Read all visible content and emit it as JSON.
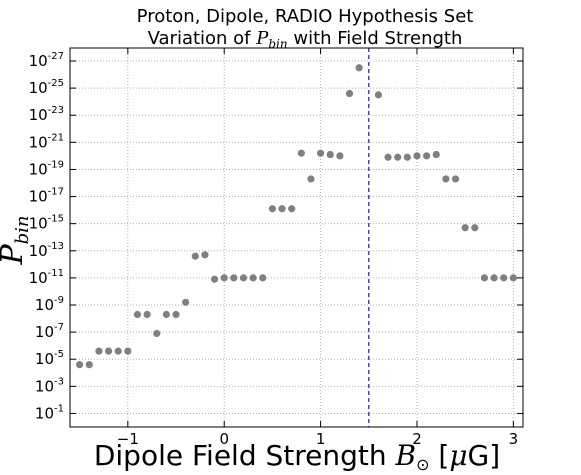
{
  "chart_data": {
    "type": "scatter",
    "title": {
      "line1": "Proton, Dipole, RADIO Hypothesis Set",
      "line2_prefix": "Variation of ",
      "line2_math": "P",
      "line2_math_sub": "bin",
      "line2_suffix": " with Field Strength"
    },
    "xlabel": {
      "prefix": "Dipole Field Strength ",
      "math": "B",
      "math_sub": "⊙",
      "units_open": " [",
      "units_math": "μ",
      "units_text": "G]"
    },
    "ylabel": {
      "math": "P",
      "math_sub": "bin"
    },
    "x_scale": "linear",
    "y_scale": "log",
    "xlim": [
      -1.6,
      3.1
    ],
    "ylim_exponent": [
      -27,
      0
    ],
    "x_ticks": [
      {
        "value": -1,
        "label": "−1"
      },
      {
        "value": 0,
        "label": "0"
      },
      {
        "value": 1,
        "label": "1"
      },
      {
        "value": 2,
        "label": "2"
      },
      {
        "value": 3,
        "label": "3"
      }
    ],
    "y_ticks": [
      {
        "exp": -1,
        "base": "10",
        "sup": "-1"
      },
      {
        "exp": -3,
        "base": "10",
        "sup": "-3"
      },
      {
        "exp": -5,
        "base": "10",
        "sup": "-5"
      },
      {
        "exp": -7,
        "base": "10",
        "sup": "-7"
      },
      {
        "exp": -9,
        "base": "10",
        "sup": "-9"
      },
      {
        "exp": -11,
        "base": "10",
        "sup": "-11"
      },
      {
        "exp": -13,
        "base": "10",
        "sup": "-13"
      },
      {
        "exp": -15,
        "base": "10",
        "sup": "-15"
      },
      {
        "exp": -17,
        "base": "10",
        "sup": "-17"
      },
      {
        "exp": -19,
        "base": "10",
        "sup": "-19"
      },
      {
        "exp": -21,
        "base": "10",
        "sup": "-21"
      },
      {
        "exp": -23,
        "base": "10",
        "sup": "-23"
      },
      {
        "exp": -25,
        "base": "10",
        "sup": "-25"
      },
      {
        "exp": -27,
        "base": "10",
        "sup": "-27"
      }
    ],
    "grid": true,
    "vline": {
      "x": 1.5,
      "style": "dashed",
      "color": "#1a1aa8"
    },
    "marker_color": "#808080",
    "points": [
      {
        "x": -1.5,
        "log10_y": -4.6
      },
      {
        "x": -1.4,
        "log10_y": -4.6
      },
      {
        "x": -1.3,
        "log10_y": -5.6
      },
      {
        "x": -1.2,
        "log10_y": -5.6
      },
      {
        "x": -1.1,
        "log10_y": -5.6
      },
      {
        "x": -1.0,
        "log10_y": -5.6
      },
      {
        "x": -0.9,
        "log10_y": -8.3
      },
      {
        "x": -0.8,
        "log10_y": -8.3
      },
      {
        "x": -0.7,
        "log10_y": -6.9
      },
      {
        "x": -0.6,
        "log10_y": -8.3
      },
      {
        "x": -0.5,
        "log10_y": -8.3
      },
      {
        "x": -0.4,
        "log10_y": -9.2
      },
      {
        "x": -0.3,
        "log10_y": -12.6
      },
      {
        "x": -0.2,
        "log10_y": -12.7
      },
      {
        "x": -0.1,
        "log10_y": -10.9
      },
      {
        "x": 0.0,
        "log10_y": -11.0
      },
      {
        "x": 0.1,
        "log10_y": -11.0
      },
      {
        "x": 0.2,
        "log10_y": -11.0
      },
      {
        "x": 0.3,
        "log10_y": -11.0
      },
      {
        "x": 0.4,
        "log10_y": -11.0
      },
      {
        "x": 0.5,
        "log10_y": -16.1
      },
      {
        "x": 0.6,
        "log10_y": -16.1
      },
      {
        "x": 0.7,
        "log10_y": -16.1
      },
      {
        "x": 0.8,
        "log10_y": -20.2
      },
      {
        "x": 0.9,
        "log10_y": -18.3
      },
      {
        "x": 1.0,
        "log10_y": -20.2
      },
      {
        "x": 1.1,
        "log10_y": -20.1
      },
      {
        "x": 1.2,
        "log10_y": -20.0
      },
      {
        "x": 1.3,
        "log10_y": -24.6
      },
      {
        "x": 1.4,
        "log10_y": -26.5
      },
      {
        "x": 1.6,
        "log10_y": -24.5
      },
      {
        "x": 1.7,
        "log10_y": -19.9
      },
      {
        "x": 1.8,
        "log10_y": -19.9
      },
      {
        "x": 1.9,
        "log10_y": -19.9
      },
      {
        "x": 2.0,
        "log10_y": -20.0
      },
      {
        "x": 2.1,
        "log10_y": -20.0
      },
      {
        "x": 2.2,
        "log10_y": -20.1
      },
      {
        "x": 2.3,
        "log10_y": -18.3
      },
      {
        "x": 2.4,
        "log10_y": -18.3
      },
      {
        "x": 2.5,
        "log10_y": -14.7
      },
      {
        "x": 2.6,
        "log10_y": -14.7
      },
      {
        "x": 2.7,
        "log10_y": -11.0
      },
      {
        "x": 2.8,
        "log10_y": -11.0
      },
      {
        "x": 2.9,
        "log10_y": -11.0
      },
      {
        "x": 3.0,
        "log10_y": -11.0
      }
    ]
  }
}
